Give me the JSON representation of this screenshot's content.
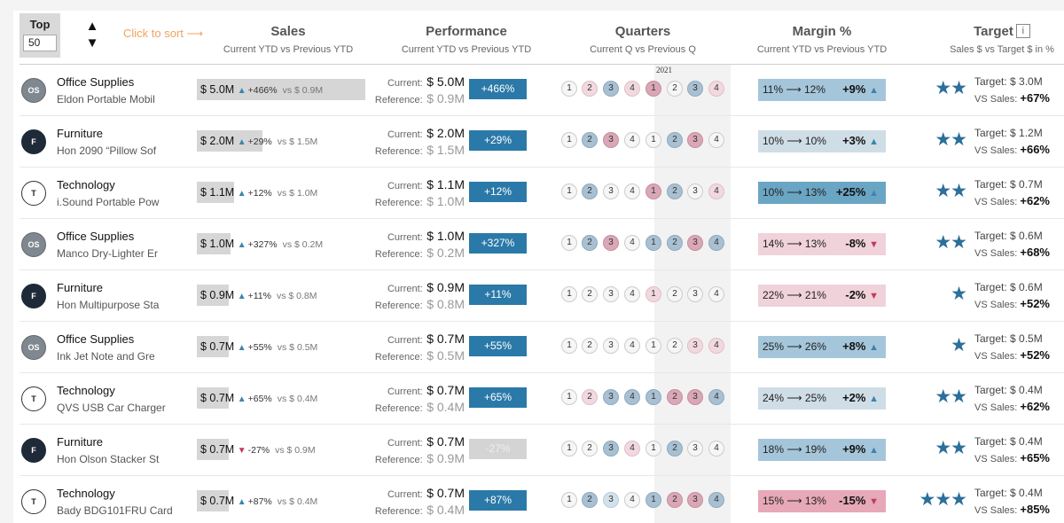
{
  "controls": {
    "top_label": "Top",
    "top_value": "50",
    "sort_up": "▲",
    "sort_down": "▼",
    "click_to_sort": "Click to sort ⟶"
  },
  "columns": {
    "sales": {
      "title": "Sales",
      "sub": "Current YTD vs Previous YTD"
    },
    "performance": {
      "title": "Performance",
      "sub": "Current YTD vs Previous YTD"
    },
    "quarters": {
      "title": "Quarters",
      "sub": "Current Q vs Previous Q",
      "year": "2021"
    },
    "margin": {
      "title": "Margin %",
      "sub": "Current YTD vs Previous YTD"
    },
    "target": {
      "title": "Target",
      "sub": "Sales $ vs Target $ in %",
      "info": "i"
    }
  },
  "labels": {
    "current": "Current:",
    "reference": "Reference:",
    "target": "Target:",
    "vs_sales": "VS Sales:"
  },
  "colors": {
    "accent_blue": "#2b79a8",
    "up_arrow": "#3a85b0",
    "down_arrow": "#c23a5a",
    "star": "#2c6f9a",
    "sort_hint": "#f0a35e"
  },
  "rows": [
    {
      "icon": "OS",
      "category": "Office Supplies",
      "product": "Eldon Portable Mobil",
      "sales": "$ 5.0M",
      "dir": "up",
      "sales_pct": "+466%",
      "prev": "vs $ 0.9M",
      "bar_fill": 1.0,
      "current": "$ 5.0M",
      "reference": "$ 0.9M",
      "perf": "+466%",
      "perf_neg": false,
      "quarters": [
        "n",
        "pl",
        "bh",
        "pl",
        "ph",
        "n",
        "bh",
        "pl"
      ],
      "margin": "11% ⟶ 12%",
      "margin_delta": "+9%",
      "margin_dir": "up",
      "margin_tone": "bm",
      "stars": "★★",
      "target": "$ 3.0M",
      "vs_sales": "+67%"
    },
    {
      "icon": "F",
      "category": "Furniture",
      "product": "Hon 2090 “Pillow Sof",
      "sales": "$ 2.0M",
      "dir": "up",
      "sales_pct": "+29%",
      "prev": "vs $ 1.5M",
      "bar_fill": 0.39,
      "current": "$ 2.0M",
      "reference": "$ 1.5M",
      "perf": "+29%",
      "perf_neg": false,
      "quarters": [
        "n",
        "bh",
        "ph",
        "n",
        "n",
        "bh",
        "ph",
        "n"
      ],
      "margin": "10% ⟶ 10%",
      "margin_delta": "+3%",
      "margin_dir": "up",
      "margin_tone": "bl",
      "stars": "★★",
      "target": "$ 1.2M",
      "vs_sales": "+66%"
    },
    {
      "icon": "T",
      "category": "Technology",
      "product": "i.Sound Portable Pow",
      "sales": "$ 1.1M",
      "dir": "up",
      "sales_pct": "+12%",
      "prev": "vs $ 1.0M",
      "bar_fill": 0.22,
      "current": "$ 1.1M",
      "reference": "$ 1.0M",
      "perf": "+12%",
      "perf_neg": false,
      "quarters": [
        "n",
        "bh",
        "n",
        "n",
        "ph",
        "bh",
        "n",
        "pl"
      ],
      "margin": "10% ⟶ 13%",
      "margin_delta": "+25%",
      "margin_dir": "up",
      "margin_tone": "bh",
      "stars": "★★",
      "target": "$ 0.7M",
      "vs_sales": "+62%"
    },
    {
      "icon": "OS",
      "category": "Office Supplies",
      "product": "Manco Dry-Lighter Er",
      "sales": "$ 1.0M",
      "dir": "up",
      "sales_pct": "+327%",
      "prev": "vs $ 0.2M",
      "bar_fill": 0.2,
      "current": "$ 1.0M",
      "reference": "$ 0.2M",
      "perf": "+327%",
      "perf_neg": false,
      "quarters": [
        "n",
        "bh",
        "ph",
        "n",
        "bh",
        "bh",
        "ph",
        "bh"
      ],
      "margin": "14% ⟶ 13%",
      "margin_delta": "-8%",
      "margin_dir": "down",
      "margin_tone": "pl",
      "stars": "★★",
      "target": "$ 0.6M",
      "vs_sales": "+68%"
    },
    {
      "icon": "F",
      "category": "Furniture",
      "product": "Hon Multipurpose Sta",
      "sales": "$ 0.9M",
      "dir": "up",
      "sales_pct": "+11%",
      "prev": "vs $ 0.8M",
      "bar_fill": 0.18,
      "current": "$ 0.9M",
      "reference": "$ 0.8M",
      "perf": "+11%",
      "perf_neg": false,
      "quarters": [
        "n",
        "n",
        "n",
        "n",
        "pl",
        "n",
        "n",
        "n"
      ],
      "margin": "22% ⟶ 21%",
      "margin_delta": "-2%",
      "margin_dir": "down",
      "margin_tone": "pl",
      "stars": "★",
      "target": "$ 0.6M",
      "vs_sales": "+52%"
    },
    {
      "icon": "OS",
      "category": "Office Supplies",
      "product": "Ink Jet Note and Gre",
      "sales": "$ 0.7M",
      "dir": "up",
      "sales_pct": "+55%",
      "prev": "vs $ 0.5M",
      "bar_fill": 0.14,
      "current": "$ 0.7M",
      "reference": "$ 0.5M",
      "perf": "+55%",
      "perf_neg": false,
      "quarters": [
        "n",
        "n",
        "n",
        "n",
        "n",
        "n",
        "pl",
        "pl"
      ],
      "margin": "25% ⟶ 26%",
      "margin_delta": "+8%",
      "margin_dir": "up",
      "margin_tone": "bm",
      "stars": "★",
      "target": "$ 0.5M",
      "vs_sales": "+52%"
    },
    {
      "icon": "T",
      "category": "Technology",
      "product": "QVS USB Car Charger",
      "sales": "$ 0.7M",
      "dir": "up",
      "sales_pct": "+65%",
      "prev": "vs $ 0.4M",
      "bar_fill": 0.14,
      "current": "$ 0.7M",
      "reference": "$ 0.4M",
      "perf": "+65%",
      "perf_neg": false,
      "quarters": [
        "n",
        "pl",
        "bh",
        "bh",
        "bh",
        "ph",
        "ph",
        "bh"
      ],
      "margin": "24% ⟶ 25%",
      "margin_delta": "+2%",
      "margin_dir": "up",
      "margin_tone": "bl",
      "stars": "★★",
      "target": "$ 0.4M",
      "vs_sales": "+62%"
    },
    {
      "icon": "F",
      "category": "Furniture",
      "product": "Hon Olson Stacker St",
      "sales": "$ 0.7M",
      "dir": "down",
      "sales_pct": "-27%",
      "prev": "vs $ 0.9M",
      "bar_fill": 0.14,
      "current": "$ 0.7M",
      "reference": "$ 0.9M",
      "perf": "-27%",
      "perf_neg": true,
      "quarters": [
        "n",
        "n",
        "bh",
        "pl",
        "n",
        "bh",
        "n",
        "n"
      ],
      "margin": "18% ⟶ 19%",
      "margin_delta": "+9%",
      "margin_dir": "up",
      "margin_tone": "bm",
      "stars": "★★",
      "target": "$ 0.4M",
      "vs_sales": "+65%"
    },
    {
      "icon": "T",
      "category": "Technology",
      "product": "Bady BDG101FRU Card",
      "sales": "$ 0.7M",
      "dir": "up",
      "sales_pct": "+87%",
      "prev": "vs $ 0.4M",
      "bar_fill": 0.14,
      "current": "$ 0.7M",
      "reference": "$ 0.4M",
      "perf": "+87%",
      "perf_neg": false,
      "quarters": [
        "n",
        "bh",
        "bl",
        "n",
        "bh",
        "ph",
        "ph",
        "bh"
      ],
      "margin": "15% ⟶ 13%",
      "margin_delta": "-15%",
      "margin_dir": "down",
      "margin_tone": "ph",
      "stars": "★★★",
      "target": "$ 0.4M",
      "vs_sales": "+85%"
    }
  ]
}
